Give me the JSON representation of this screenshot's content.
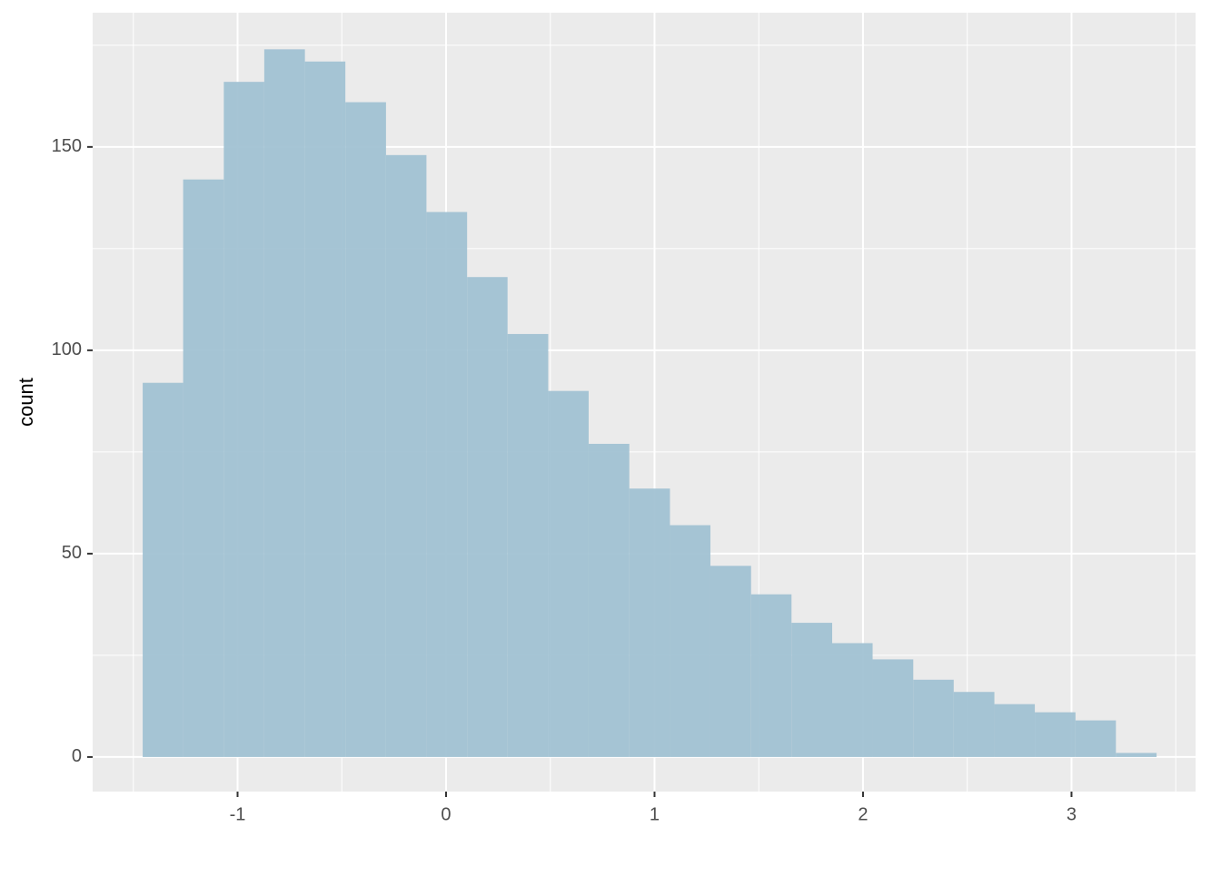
{
  "chart_data": {
    "type": "histogram",
    "y_label": "count",
    "bins": [
      -1.455,
      -1.261,
      -1.066,
      -0.872,
      -0.677,
      -0.483,
      -0.288,
      -0.094,
      0.101,
      0.295,
      0.49,
      0.684,
      0.879,
      1.074,
      1.268,
      1.463,
      1.657,
      1.852,
      2.046,
      2.241,
      2.435,
      2.63,
      2.824,
      3.019,
      3.213,
      3.408
    ],
    "values": [
      92,
      142,
      166,
      174,
      171,
      161,
      148,
      134,
      118,
      104,
      90,
      77,
      66,
      57,
      47,
      40,
      33,
      28,
      24,
      19,
      16,
      13,
      11,
      9,
      1
    ],
    "color": "#a1c2d3",
    "xlim": [
      -1.695,
      3.595
    ],
    "xticks": [
      -1,
      0,
      1,
      2,
      3
    ],
    "x_minor_grid": [
      -1.5,
      -0.5,
      0.5,
      1.5,
      2.5,
      3.5
    ],
    "ylim": [
      -8.5,
      183
    ],
    "yticks": [
      0,
      50,
      100,
      150
    ],
    "y_minor_grid": [
      25,
      75,
      125,
      175
    ],
    "grid": true
  }
}
